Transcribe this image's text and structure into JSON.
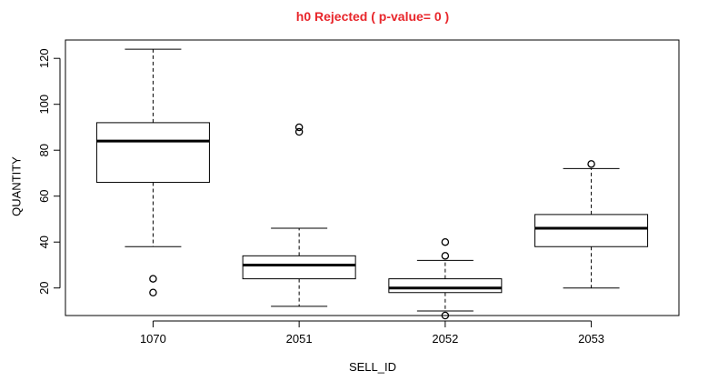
{
  "chart_data": {
    "type": "boxplot",
    "title": "h0 Rejected ( p-value= 0 )",
    "title_color": "#e8262b",
    "xlabel": "SELL_ID",
    "ylabel": "QUANTITY",
    "ylim": [
      8,
      128
    ],
    "yticks": [
      20,
      40,
      60,
      80,
      100,
      120
    ],
    "grid": false,
    "categories": [
      "1070",
      "2051",
      "2052",
      "2053"
    ],
    "boxes": [
      {
        "category": "1070",
        "whisker_low": 38,
        "q1": 66,
        "median": 84,
        "q3": 92,
        "whisker_high": 124,
        "outliers": [
          24,
          18
        ]
      },
      {
        "category": "2051",
        "whisker_low": 12,
        "q1": 24,
        "median": 30,
        "q3": 34,
        "whisker_high": 46,
        "outliers": [
          90,
          88
        ]
      },
      {
        "category": "2052",
        "whisker_low": 10,
        "q1": 18,
        "median": 20,
        "q3": 24,
        "whisker_high": 32,
        "outliers": [
          40,
          34,
          8
        ]
      },
      {
        "category": "2053",
        "whisker_low": 20,
        "q1": 38,
        "median": 46,
        "q3": 52,
        "whisker_high": 72,
        "outliers": [
          74
        ]
      }
    ]
  }
}
